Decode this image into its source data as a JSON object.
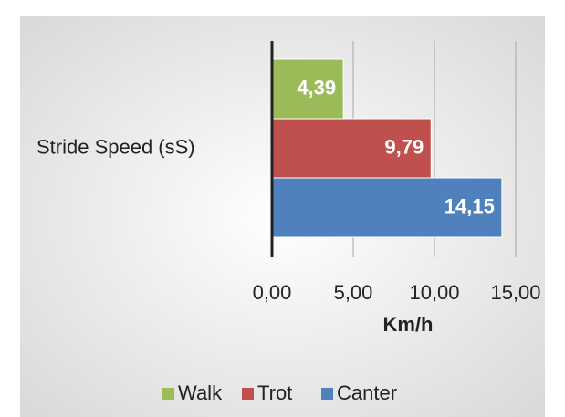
{
  "chart_data": {
    "type": "barh",
    "categories": [
      "Stride Speed (sS)"
    ],
    "series": [
      {
        "name": "Walk",
        "color": "#9bbb59",
        "values": [
          4.39
        ],
        "value_labels": [
          "4,39"
        ]
      },
      {
        "name": "Trot",
        "color": "#c0504d",
        "values": [
          9.79
        ],
        "value_labels": [
          "9,79"
        ]
      },
      {
        "name": "Canter",
        "color": "#4f81bd",
        "values": [
          14.15
        ],
        "value_labels": [
          "14,15"
        ]
      }
    ],
    "xlabel": "Km/h",
    "xlim": [
      0,
      15
    ],
    "xticks": [
      {
        "value": 0,
        "label": "0,00"
      },
      {
        "value": 5,
        "label": "5,00"
      },
      {
        "value": 10,
        "label": "10,00"
      },
      {
        "value": 15,
        "label": "15,00"
      }
    ],
    "grid": true,
    "legend": "bottom"
  }
}
